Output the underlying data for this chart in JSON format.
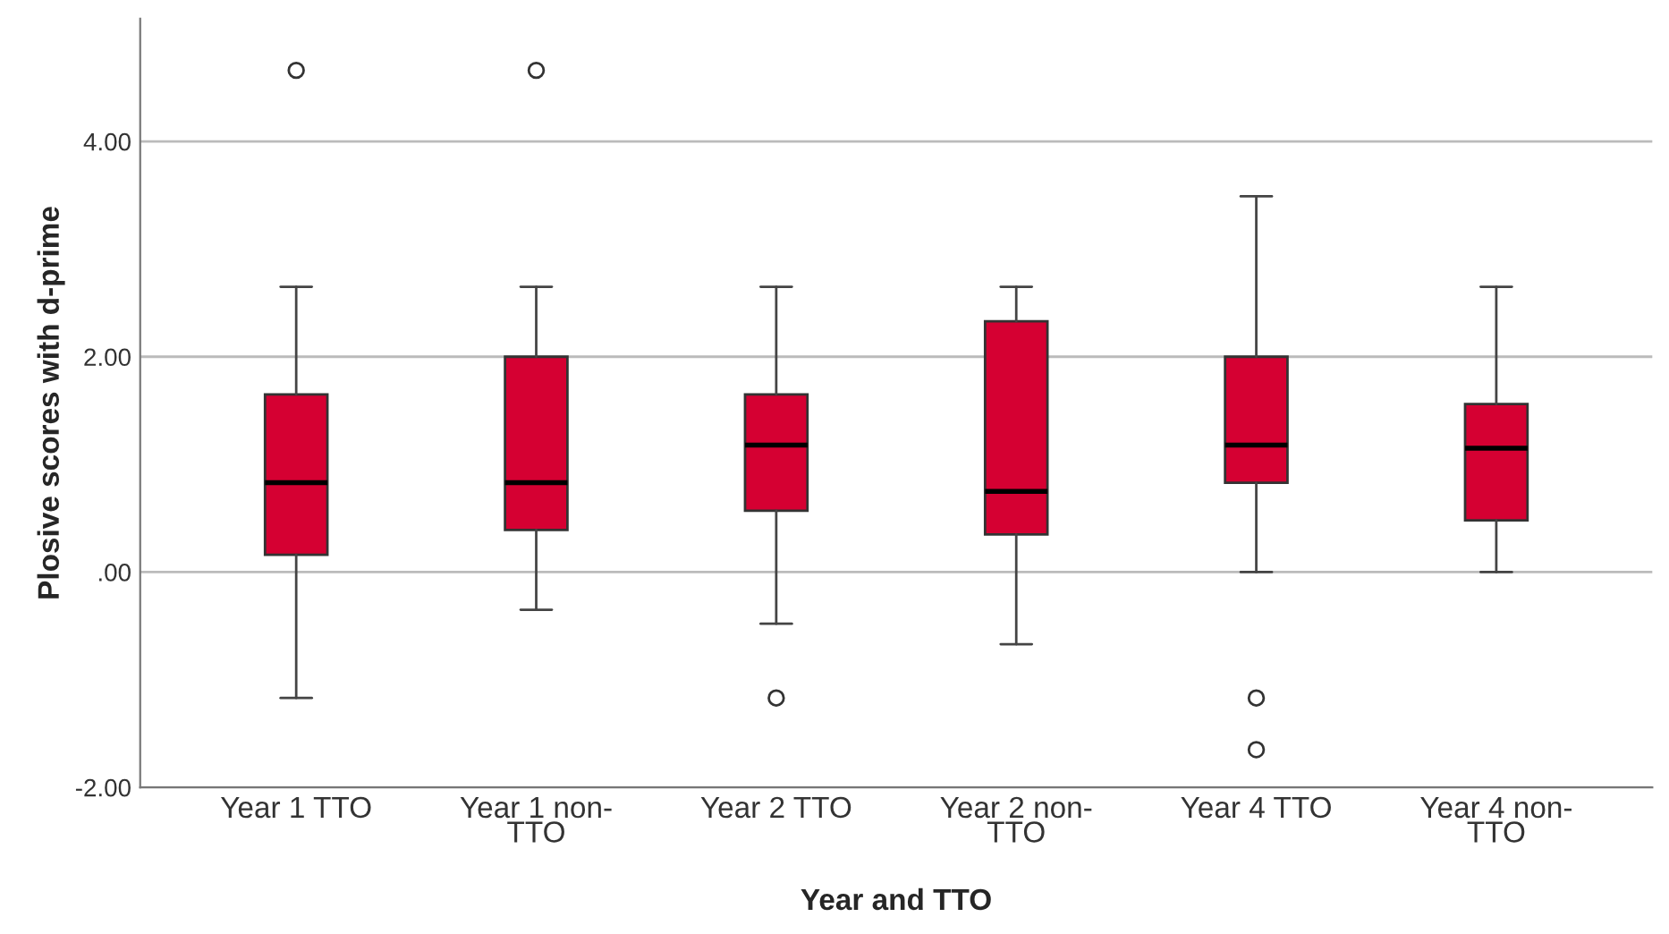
{
  "chart_data": {
    "type": "box",
    "xlabel": "Year and TTO",
    "ylabel": "Plosive scores with d-prime",
    "categories": [
      "Year 1 TTO",
      "Year 1 non-\nTTO",
      "Year 2 TTO",
      "Year 2 non-\nTTO",
      "Year 4 TTO",
      "Year 4 non-\nTTO"
    ],
    "color": "#d50032",
    "boxes": [
      {
        "low": -1.17,
        "q1": 0.16,
        "median": 0.83,
        "q3": 1.65,
        "high": 2.65,
        "outliers": [
          4.66
        ]
      },
      {
        "low": -0.35,
        "q1": 0.39,
        "median": 0.83,
        "q3": 2.0,
        "high": 2.65,
        "outliers": [
          4.66
        ]
      },
      {
        "low": -0.48,
        "q1": 0.57,
        "median": 1.18,
        "q3": 1.65,
        "high": 2.65,
        "outliers": [
          -1.17
        ]
      },
      {
        "low": -0.67,
        "q1": 0.35,
        "median": 0.75,
        "q3": 2.33,
        "high": 2.65
      },
      {
        "low": 0.0,
        "q1": 0.83,
        "median": 1.18,
        "q3": 2.0,
        "high": 3.49,
        "outliers": [
          -1.17,
          -1.65
        ]
      },
      {
        "low": 0.0,
        "q1": 0.48,
        "median": 1.15,
        "q3": 1.56,
        "high": 2.65
      }
    ],
    "ylim": [
      -2,
      5.14
    ],
    "yticks": [
      {
        "value": -2,
        "label": "-2.00"
      },
      {
        "value": 0,
        "label": ".00"
      },
      {
        "value": 2,
        "label": "2.00"
      },
      {
        "value": 4,
        "label": "4.00"
      }
    ],
    "grid": "y"
  }
}
